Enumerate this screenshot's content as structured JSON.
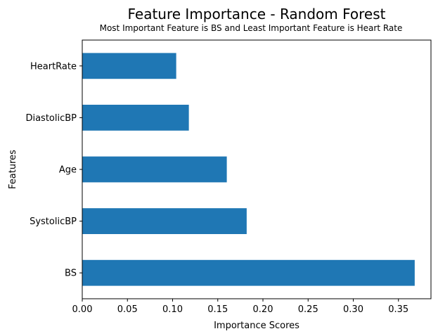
{
  "chart_data": {
    "type": "bar",
    "orientation": "horizontal",
    "title": "Feature Importance - Random Forest",
    "subtitle": "Most Important Feature is BS and Least Important Feature is Heart Rate",
    "xlabel": "Importance Scores",
    "ylabel": "Features",
    "categories": [
      "BS",
      "SystolicBP",
      "Age",
      "DiastolicBP",
      "HeartRate"
    ],
    "values": [
      0.368,
      0.182,
      0.16,
      0.118,
      0.104
    ],
    "xlim": [
      0,
      0.386
    ],
    "xticks": [
      "0.00",
      "0.05",
      "0.10",
      "0.15",
      "0.20",
      "0.25",
      "0.30",
      "0.35"
    ],
    "grid": false,
    "bar_color": "#1f77b4"
  }
}
